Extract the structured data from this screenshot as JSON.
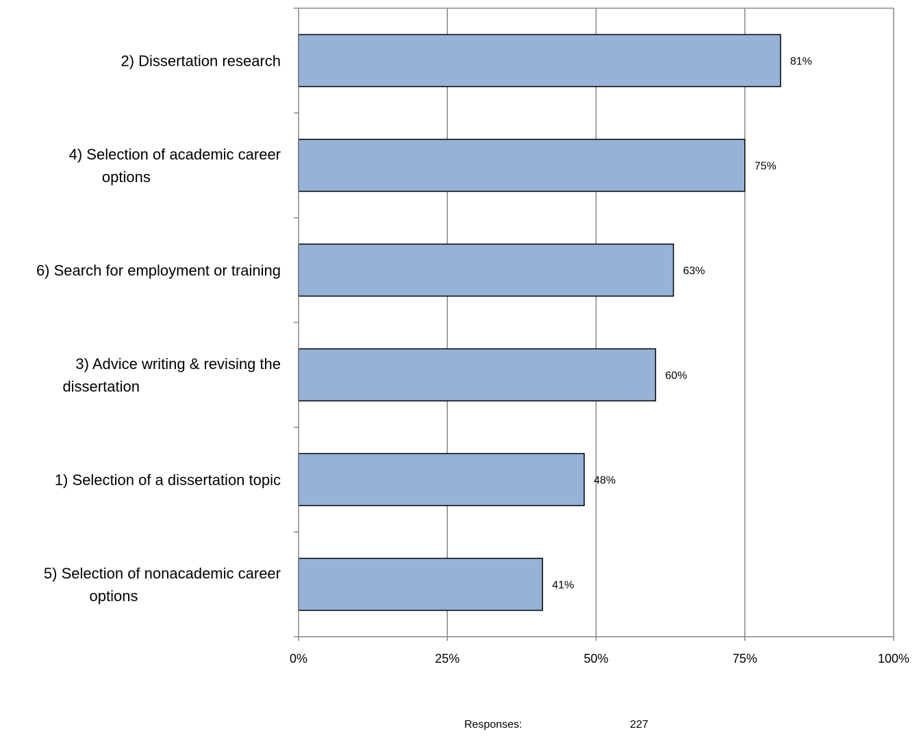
{
  "chart_data": {
    "type": "bar",
    "orientation": "horizontal",
    "categories": [
      "2) Dissertation research",
      "4) Selection of academic career options",
      "6) Search for employment or training",
      "3) Advice writing & revising the dissertation",
      "1) Selection of a dissertation topic",
      "5) Selection of nonacademic career options"
    ],
    "category_lines": [
      [
        "2) Dissertation research"
      ],
      [
        "4) Selection of academic career",
        "options"
      ],
      [
        "6) Search for employment or training"
      ],
      [
        "3) Advice writing & revising the",
        "dissertation"
      ],
      [
        "1) Selection of a dissertation topic"
      ],
      [
        "5) Selection of nonacademic career",
        "options"
      ]
    ],
    "values": [
      81,
      75,
      63,
      60,
      48,
      41
    ],
    "data_labels": [
      "81%",
      "75%",
      "63%",
      "60%",
      "48%",
      "41%"
    ],
    "xlim": [
      0,
      100
    ],
    "x_ticks": [
      0,
      25,
      50,
      75,
      100
    ],
    "x_tick_labels": [
      "0%",
      "25%",
      "50%",
      "75%",
      "100%"
    ],
    "grid": "vertical",
    "bar_color": "#95b3d7",
    "bar_edge_color": "#000000",
    "grid_color": "#868686"
  },
  "footer": {
    "responses_label": "Responses:",
    "responses_value": "227"
  }
}
